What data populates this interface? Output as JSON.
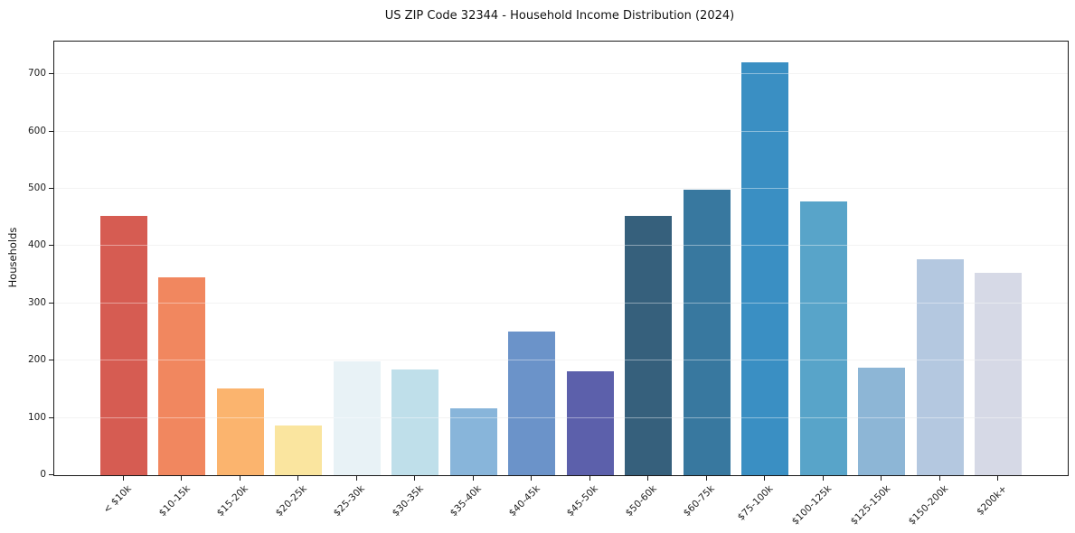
{
  "chart_data": {
    "type": "bar",
    "title": "US ZIP Code 32344 - Household Income Distribution (2024)",
    "xlabel": "",
    "ylabel": "Households",
    "categories": [
      "< $10k",
      "$10-15k",
      "$15-20k",
      "$20-25k",
      "$25-30k",
      "$30-35k",
      "$35-40k",
      "$40-45k",
      "$45-50k",
      "$50-60k",
      "$60-75k",
      "$75-100k",
      "$100-125k",
      "$125-150k",
      "$150-200k",
      "$200k+"
    ],
    "values": [
      452,
      345,
      151,
      86,
      199,
      185,
      116,
      251,
      181,
      452,
      498,
      721,
      478,
      187,
      377,
      353
    ],
    "bar_colors": [
      "#d65c52",
      "#f1875f",
      "#fbb46e",
      "#fae59f",
      "#e8f2f6",
      "#bfdfea",
      "#88b5da",
      "#6b93c9",
      "#5c60ab",
      "#36607c",
      "#38789f",
      "#3a8fc3",
      "#58a4c9",
      "#8db6d6",
      "#b4c8e0",
      "#d6d9e6"
    ],
    "yticks": [
      0,
      100,
      200,
      300,
      400,
      500,
      600,
      700
    ],
    "ylim": [
      0,
      757
    ],
    "grid": "horizontal-light",
    "legend": "none",
    "x_tick_rotation": 45
  }
}
